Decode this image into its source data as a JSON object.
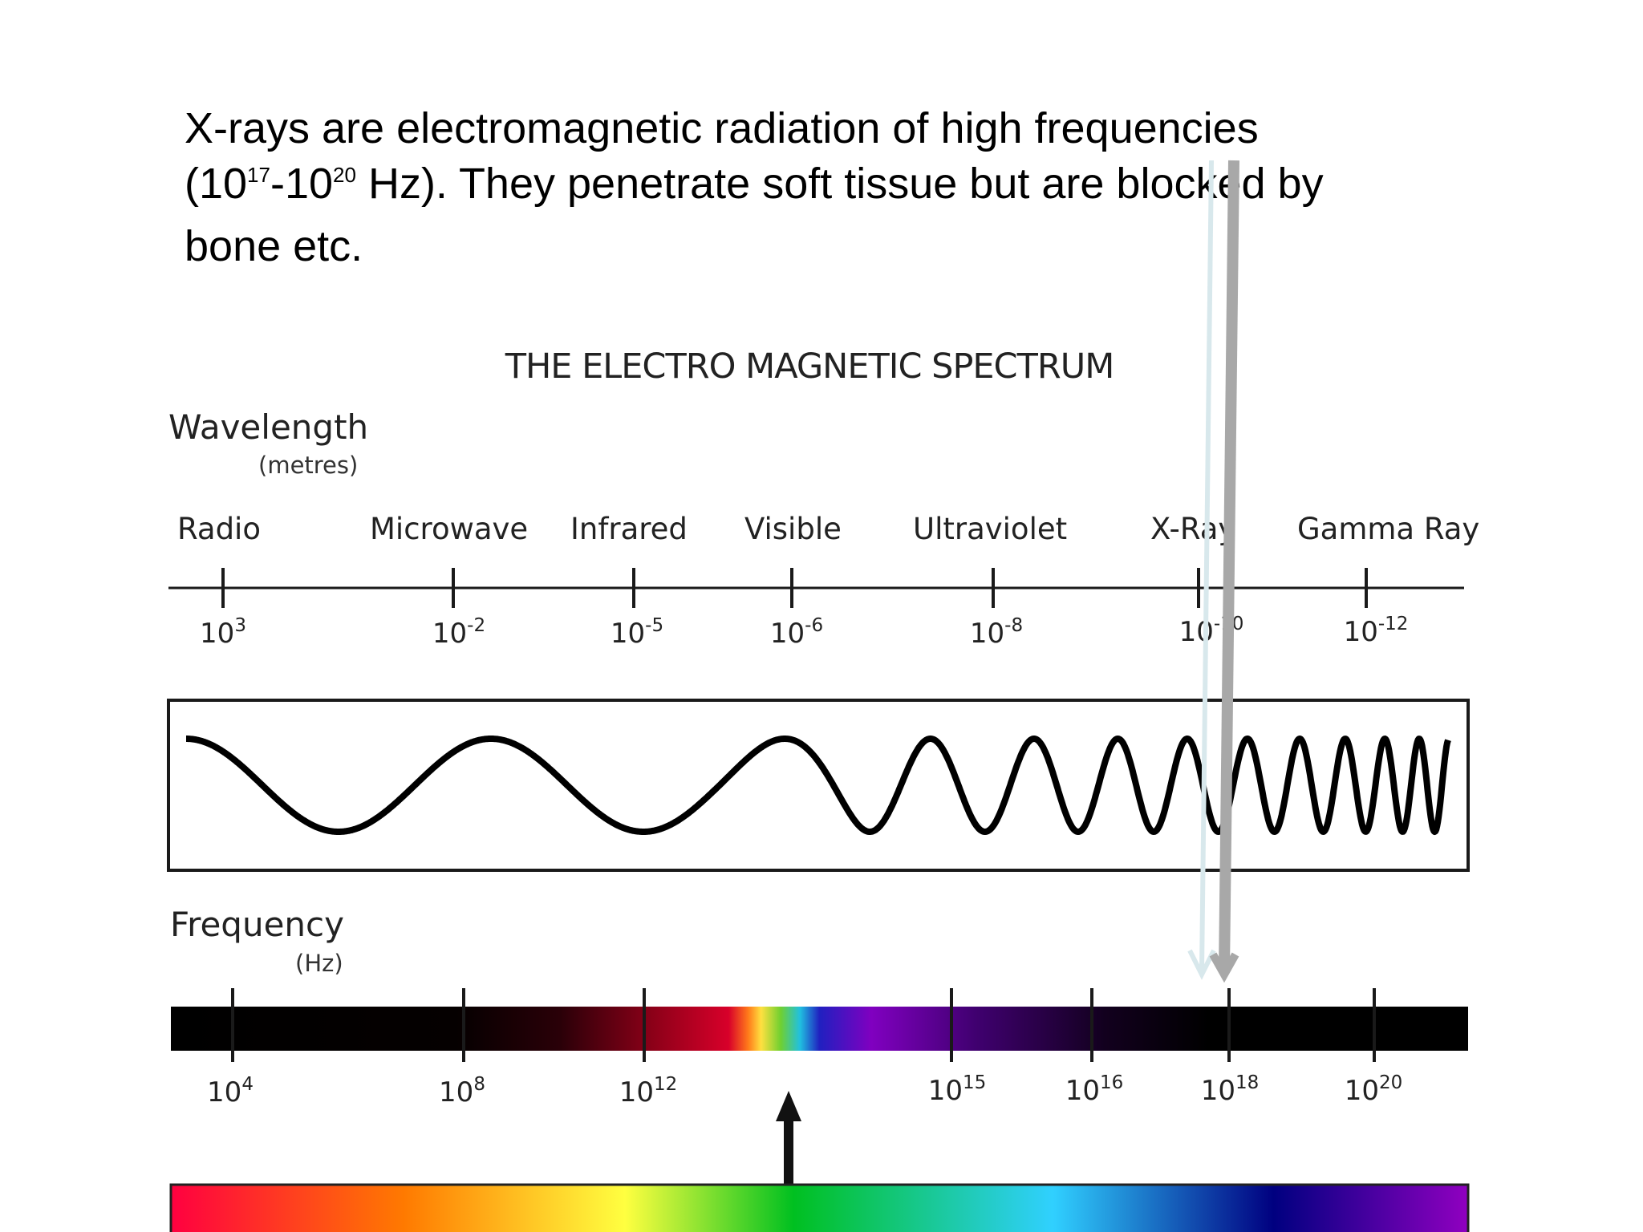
{
  "intro": {
    "line1": "X-rays are electromagnetic radiation of high frequencies",
    "line2_open": "(10",
    "line2_exp1": "17",
    "line2_dash": "-10",
    "line2_exp2": "20",
    "line2_rest": " Hz). They penetrate soft tissue but are blocked by",
    "line3": "bone etc."
  },
  "diagram": {
    "title": "THE ELECTRO MAGNETIC SPECTRUM",
    "wavelength_heading": "Wavelength",
    "wavelength_unit": "(metres)",
    "frequency_heading": "Frequency",
    "frequency_unit": "(Hz)",
    "bands": [
      "Radio",
      "Microwave",
      "Infrared",
      "Visible",
      "Ultraviolet",
      "X-Ray",
      "Gamma Ray"
    ],
    "wavelength_ticks": [
      {
        "base": "10",
        "exp": "3"
      },
      {
        "base": "10",
        "exp": "-2"
      },
      {
        "base": "10",
        "exp": "-5"
      },
      {
        "base": "10",
        "exp": "-6"
      },
      {
        "base": "10",
        "exp": "-8"
      },
      {
        "base": "10",
        "exp": "-10"
      },
      {
        "base": "10",
        "exp": "-12"
      }
    ],
    "frequency_ticks": [
      {
        "base": "10",
        "exp": "4"
      },
      {
        "base": "10",
        "exp": "8"
      },
      {
        "base": "10",
        "exp": "12"
      },
      {
        "base": "10",
        "exp": "15"
      },
      {
        "base": "10",
        "exp": "16"
      },
      {
        "base": "10",
        "exp": "18"
      },
      {
        "base": "10",
        "exp": "20"
      }
    ],
    "colors": {
      "axis": "#1a1a1a",
      "arrow_light": "#d8e8ec",
      "arrow_dark": "#a8a8a8",
      "spectrum": [
        "#ff0040",
        "#ff7a00",
        "#ffff40",
        "#00c020",
        "#30d0ff",
        "#000080",
        "#9000c0"
      ]
    }
  }
}
